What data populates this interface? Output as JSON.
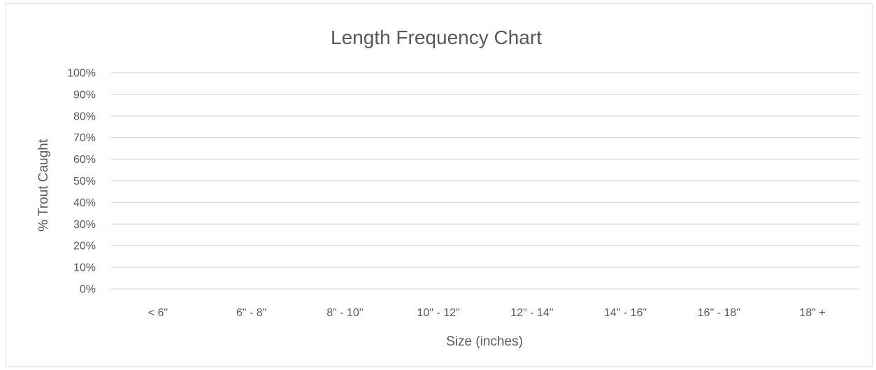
{
  "chart_data": {
    "type": "bar",
    "title": "Length Frequency Chart",
    "xlabel": "Size (inches)",
    "ylabel": "% Trout Caught",
    "categories": [
      "< 6\"",
      "6\" - 8\"",
      "8\" - 10\"",
      "10\" - 12\"",
      "12\" - 14\"",
      "14\" - 16\"",
      "16\" - 18\"",
      "18\" +"
    ],
    "series": [
      {
        "values": [
          0,
          0,
          0,
          0,
          0,
          0,
          0,
          0
        ]
      }
    ],
    "ylim": [
      0,
      1
    ],
    "y_ticks": [
      0,
      0.1,
      0.2,
      0.3,
      0.4,
      0.5,
      0.6,
      0.7,
      0.8,
      0.9,
      1.0
    ],
    "y_tick_labels": [
      "0%",
      "10%",
      "20%",
      "30%",
      "40%",
      "50%",
      "60%",
      "70%",
      "80%",
      "90%",
      "100%"
    ],
    "grid": true,
    "legend": "none",
    "colors": {
      "gridline": "#d9d9d9",
      "text": "#595959",
      "bar": "#4472c4"
    }
  }
}
